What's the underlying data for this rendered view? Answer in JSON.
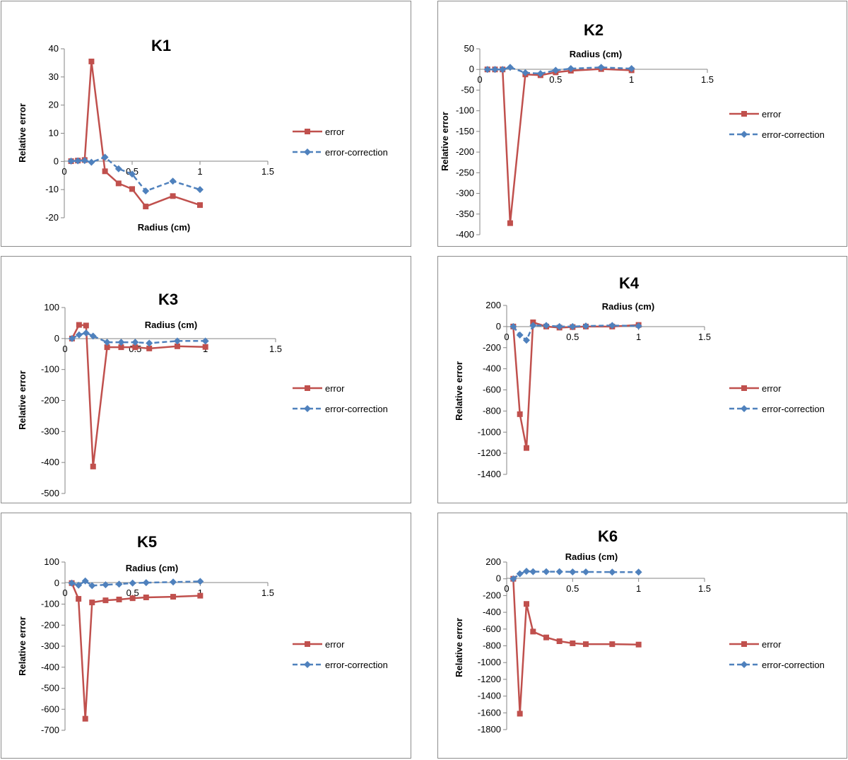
{
  "colors": {
    "error": "#C0504D",
    "error_correction": "#4F81BD",
    "axis": "#868686",
    "border": "#8C8C8C"
  },
  "chart_data": [
    {
      "type": "line",
      "title": "K1",
      "xlabel": "Radius (cm)",
      "ylabel": "Relative error",
      "xlim": [
        0,
        1.5
      ],
      "ylim": [
        -20,
        40
      ],
      "xticks": [
        0,
        0.5,
        1,
        1.5
      ],
      "yticks": [
        40,
        30,
        20,
        10,
        0,
        -10,
        -20
      ],
      "grid": false,
      "legend": "right",
      "series": [
        {
          "name": "error",
          "x": [
            0.05,
            0.1,
            0.15,
            0.2,
            0.3,
            0.4,
            0.5,
            0.6,
            0.8,
            1.0
          ],
          "values": [
            0.1,
            0.3,
            0.5,
            35.5,
            -3.5,
            -7.8,
            -9.8,
            -16.0,
            -12.3,
            -15.5
          ]
        },
        {
          "name": "error-correction",
          "x": [
            0.05,
            0.1,
            0.15,
            0.2,
            0.3,
            0.4,
            0.5,
            0.6,
            0.8,
            1.0
          ],
          "values": [
            0.1,
            0.2,
            0.3,
            -0.3,
            1.5,
            -2.6,
            -4.5,
            -10.5,
            -7.0,
            -10.0
          ]
        }
      ]
    },
    {
      "type": "line",
      "title": "K2",
      "xlabel": "Radius (cm)",
      "ylabel": "Relative error",
      "xlim": [
        0,
        1.5
      ],
      "ylim": [
        -400,
        50
      ],
      "xticks": [
        0,
        0.5,
        1,
        1.5
      ],
      "yticks": [
        50,
        0,
        -50,
        -100,
        -150,
        -200,
        -250,
        -300,
        -350,
        -400
      ],
      "grid": false,
      "legend": "right",
      "series": [
        {
          "name": "error",
          "x": [
            0.05,
            0.1,
            0.15,
            0.2,
            0.3,
            0.4,
            0.5,
            0.6,
            0.8,
            1.0
          ],
          "values": [
            0,
            0,
            0,
            -372,
            -12,
            -14,
            -7,
            -3,
            1,
            -2
          ]
        },
        {
          "name": "error-correction",
          "x": [
            0.05,
            0.1,
            0.15,
            0.2,
            0.3,
            0.4,
            0.5,
            0.6,
            0.8,
            1.0
          ],
          "values": [
            0,
            0,
            0,
            5,
            -8,
            -10,
            -2,
            2,
            5,
            2
          ]
        }
      ]
    },
    {
      "type": "line",
      "title": "K3",
      "xlabel": "Radius (cm)",
      "ylabel": "Relative error",
      "xlim": [
        0,
        1.5
      ],
      "ylim": [
        -500,
        100
      ],
      "xticks": [
        0,
        0.5,
        1,
        1.5
      ],
      "yticks": [
        100,
        0,
        -100,
        -200,
        -300,
        -400,
        -500
      ],
      "grid": false,
      "legend": "right",
      "series": [
        {
          "name": "error",
          "x": [
            0.05,
            0.1,
            0.15,
            0.2,
            0.3,
            0.4,
            0.5,
            0.6,
            0.8,
            1.0
          ],
          "values": [
            0,
            44,
            42,
            -413,
            -28,
            -28,
            -28,
            -32,
            -25,
            -27
          ]
        },
        {
          "name": "error-correction",
          "x": [
            0.05,
            0.1,
            0.15,
            0.2,
            0.3,
            0.4,
            0.5,
            0.6,
            0.8,
            1.0
          ],
          "values": [
            0,
            12,
            18,
            8,
            -12,
            -12,
            -12,
            -15,
            -8,
            -8
          ]
        }
      ]
    },
    {
      "type": "line",
      "title": "K4",
      "xlabel": "Radius (cm)",
      "ylabel": "Relative error",
      "xlim": [
        0,
        1.5
      ],
      "ylim": [
        -1400,
        200
      ],
      "xticks": [
        0,
        0.5,
        1,
        1.5
      ],
      "yticks": [
        200,
        0,
        -200,
        -400,
        -600,
        -800,
        -1000,
        -1200,
        -1400
      ],
      "grid": false,
      "legend": "right",
      "series": [
        {
          "name": "error",
          "x": [
            0.05,
            0.1,
            0.15,
            0.2,
            0.3,
            0.4,
            0.5,
            0.6,
            0.8,
            1.0
          ],
          "values": [
            0,
            -830,
            -1150,
            40,
            0,
            -10,
            -5,
            0,
            0,
            15
          ]
        },
        {
          "name": "error-correction",
          "x": [
            0.05,
            0.1,
            0.15,
            0.2,
            0.3,
            0.4,
            0.5,
            0.6,
            0.8,
            1.0
          ],
          "values": [
            0,
            -80,
            -130,
            10,
            10,
            0,
            0,
            5,
            10,
            5
          ]
        }
      ]
    },
    {
      "type": "line",
      "title": "K5",
      "xlabel": "Radius (cm)",
      "ylabel": "Relative error",
      "xlim": [
        0,
        1.5
      ],
      "ylim": [
        -700,
        100
      ],
      "xticks": [
        0,
        0.5,
        1,
        1.5
      ],
      "yticks": [
        100,
        0,
        -100,
        -200,
        -300,
        -400,
        -500,
        -600,
        -700
      ],
      "grid": false,
      "legend": "right",
      "series": [
        {
          "name": "error",
          "x": [
            0.05,
            0.1,
            0.15,
            0.2,
            0.3,
            0.4,
            0.5,
            0.6,
            0.8,
            1.0
          ],
          "values": [
            0,
            -75,
            -645,
            -92,
            -82,
            -78,
            -72,
            -68,
            -65,
            -60
          ]
        },
        {
          "name": "error-correction",
          "x": [
            0.05,
            0.1,
            0.15,
            0.2,
            0.3,
            0.4,
            0.5,
            0.6,
            0.8,
            1.0
          ],
          "values": [
            0,
            -10,
            10,
            -12,
            -8,
            -5,
            0,
            2,
            5,
            8
          ]
        }
      ]
    },
    {
      "type": "line",
      "title": "K6",
      "xlabel": "Radius (cm)",
      "ylabel": "Relative error",
      "xlim": [
        0,
        1.5
      ],
      "ylim": [
        -1800,
        200
      ],
      "xticks": [
        0,
        0.5,
        1,
        1.5
      ],
      "yticks": [
        200,
        0,
        -200,
        -400,
        -600,
        -800,
        -1000,
        -1200,
        -1400,
        -1600,
        -1800
      ],
      "grid": false,
      "legend": "right",
      "series": [
        {
          "name": "error",
          "x": [
            0.05,
            0.1,
            0.15,
            0.2,
            0.3,
            0.4,
            0.5,
            0.6,
            0.8,
            1.0
          ],
          "values": [
            0,
            -1610,
            -300,
            -630,
            -700,
            -745,
            -770,
            -780,
            -780,
            -785
          ]
        },
        {
          "name": "error-correction",
          "x": [
            0.05,
            0.1,
            0.15,
            0.2,
            0.3,
            0.4,
            0.5,
            0.6,
            0.8,
            1.0
          ],
          "values": [
            0,
            60,
            90,
            85,
            85,
            85,
            82,
            82,
            80,
            80
          ]
        }
      ]
    }
  ]
}
